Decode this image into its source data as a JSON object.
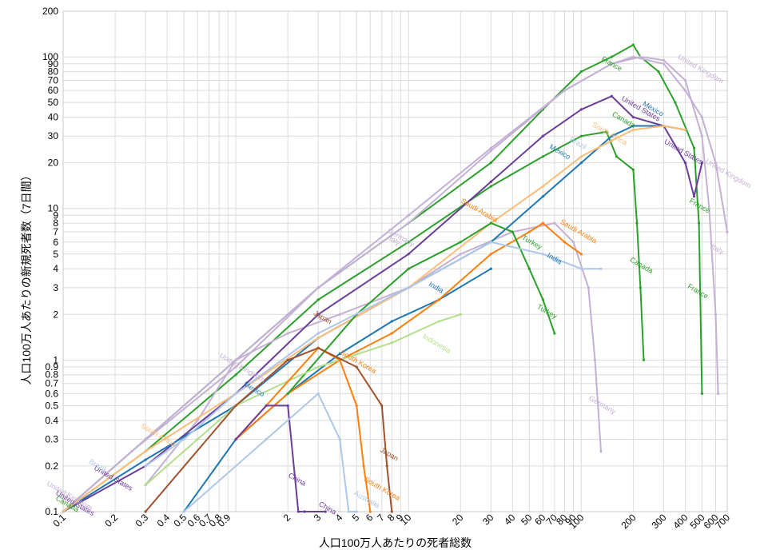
{
  "chart_data": {
    "type": "line",
    "xlabel": "人口100万人あたりの死者総数",
    "ylabel": "人口100万人あたりの新規死者数（7日間）",
    "x_scale": "log",
    "y_scale": "log",
    "xlim": [
      0.1,
      700
    ],
    "ylim": [
      0.1,
      200
    ],
    "x_ticks": [
      0.1,
      0.2,
      0.3,
      0.4,
      0.5,
      0.6,
      0.7,
      0.8,
      0.9,
      2,
      3,
      4,
      5,
      6,
      7,
      8,
      9,
      10,
      20,
      30,
      40,
      50,
      60,
      70,
      80,
      90,
      100,
      200,
      300,
      400,
      500,
      600,
      700
    ],
    "x_tick_labels": [
      "0.1",
      "0.2",
      "0.3",
      "0.4",
      "0.5",
      "0.6",
      "0.7",
      "0.8",
      "0.9",
      "2",
      "3",
      "4",
      "5",
      "6",
      "7",
      "8",
      "9",
      "10",
      "20",
      "30",
      "40",
      "50",
      "60",
      "70",
      "80",
      "90",
      "100",
      "200",
      "300",
      "400",
      "500",
      "600",
      "700"
    ],
    "y_ticks": [
      0.1,
      0.2,
      0.3,
      0.4,
      0.5,
      0.6,
      0.7,
      0.8,
      0.9,
      1,
      2,
      3,
      4,
      5,
      6,
      7,
      8,
      9,
      10,
      20,
      30,
      40,
      50,
      60,
      70,
      80,
      90,
      100,
      200
    ],
    "y_tick_labels": [
      "0.1",
      "0.2",
      "0.3",
      "0.4",
      "0.5",
      "0.6",
      "0.7",
      "0.8",
      "0.9",
      "1",
      "2",
      "3",
      "4",
      "5",
      "6",
      "7",
      "8",
      "9",
      "10",
      "20",
      "30",
      "40",
      "50",
      "60",
      "70",
      "80",
      "90",
      "100",
      "200"
    ],
    "grid": true,
    "series": [
      {
        "name": "France",
        "color": "#2ca02c",
        "points": [
          [
            0.1,
            0.1
          ],
          [
            0.3,
            0.3
          ],
          [
            1,
            1
          ],
          [
            3,
            3
          ],
          [
            10,
            8
          ],
          [
            30,
            20
          ],
          [
            60,
            45
          ],
          [
            100,
            80
          ],
          [
            150,
            100
          ],
          [
            200,
            120
          ],
          [
            220,
            100
          ],
          [
            280,
            80
          ],
          [
            350,
            50
          ],
          [
            450,
            25
          ],
          [
            480,
            8
          ],
          [
            500,
            0.6
          ]
        ]
      },
      {
        "name": "Canada",
        "color": "#2ca02c",
        "points": [
          [
            0.1,
            0.1
          ],
          [
            0.3,
            0.25
          ],
          [
            1,
            0.8
          ],
          [
            3,
            2.5
          ],
          [
            10,
            6
          ],
          [
            30,
            14
          ],
          [
            60,
            22
          ],
          [
            100,
            30
          ],
          [
            140,
            32
          ],
          [
            160,
            22
          ],
          [
            200,
            18
          ],
          [
            210,
            8
          ],
          [
            220,
            3
          ],
          [
            230,
            1
          ]
        ]
      },
      {
        "name": "Italy",
        "color": "#c5b0d5",
        "points": [
          [
            0.1,
            0.1
          ],
          [
            0.3,
            0.3
          ],
          [
            1,
            1
          ],
          [
            3,
            3
          ],
          [
            10,
            9
          ],
          [
            30,
            25
          ],
          [
            80,
            60
          ],
          [
            150,
            90
          ],
          [
            200,
            100
          ],
          [
            300,
            90
          ],
          [
            400,
            60
          ],
          [
            500,
            40
          ],
          [
            600,
            20
          ],
          [
            700,
            7
          ]
        ]
      },
      {
        "name": "United Kingdom",
        "color": "#c5b0d5",
        "points": [
          [
            0.1,
            0.1
          ],
          [
            0.25,
            0.25
          ],
          [
            1,
            0.9
          ],
          [
            3,
            3
          ],
          [
            10,
            8
          ],
          [
            30,
            24
          ],
          [
            80,
            60
          ],
          [
            150,
            90
          ],
          [
            220,
            100
          ],
          [
            300,
            95
          ],
          [
            400,
            70
          ],
          [
            500,
            30
          ],
          [
            550,
            10
          ],
          [
            600,
            2
          ],
          [
            620,
            0.6
          ]
        ]
      },
      {
        "name": "Germany",
        "color": "#c5b0d5",
        "points": [
          [
            0.3,
            0.15
          ],
          [
            0.6,
            0.4
          ],
          [
            1,
            1
          ],
          [
            2,
            1.5
          ],
          [
            4,
            2
          ],
          [
            10,
            3
          ],
          [
            20,
            5
          ],
          [
            40,
            7
          ],
          [
            70,
            8
          ],
          [
            90,
            6
          ],
          [
            110,
            3
          ],
          [
            120,
            1
          ],
          [
            130,
            0.25
          ]
        ]
      },
      {
        "name": "United States",
        "color": "#6a3d9a",
        "points": [
          [
            0.1,
            0.1
          ],
          [
            0.3,
            0.2
          ],
          [
            1,
            0.6
          ],
          [
            3,
            2
          ],
          [
            10,
            5
          ],
          [
            30,
            15
          ],
          [
            60,
            30
          ],
          [
            100,
            45
          ],
          [
            150,
            55
          ],
          [
            200,
            40
          ],
          [
            300,
            35
          ],
          [
            400,
            20
          ],
          [
            450,
            12
          ],
          [
            500,
            20
          ]
        ]
      },
      {
        "name": "Mexico",
        "color": "#1f77b4",
        "points": [
          [
            0.1,
            0.1
          ],
          [
            0.3,
            0.22
          ],
          [
            1,
            0.5
          ],
          [
            3,
            1.4
          ],
          [
            10,
            3
          ],
          [
            30,
            6
          ],
          [
            60,
            12
          ],
          [
            100,
            20
          ],
          [
            150,
            30
          ],
          [
            200,
            35
          ],
          [
            300,
            35
          ],
          [
            400,
            33
          ]
        ]
      },
      {
        "name": "South Africa",
        "color": "#ffbb78",
        "points": [
          [
            0.1,
            0.1
          ],
          [
            0.3,
            0.25
          ],
          [
            1,
            0.6
          ],
          [
            3,
            1.4
          ],
          [
            10,
            3
          ],
          [
            30,
            8
          ],
          [
            60,
            14
          ],
          [
            100,
            22
          ],
          [
            150,
            28
          ],
          [
            200,
            33
          ],
          [
            300,
            35
          ],
          [
            400,
            33
          ]
        ]
      },
      {
        "name": "India",
        "color": "#1f77b4",
        "points": [
          [
            0.5,
            0.1
          ],
          [
            1,
            0.3
          ],
          [
            2,
            0.6
          ],
          [
            4,
            1.1
          ],
          [
            8,
            1.8
          ],
          [
            15,
            2.5
          ],
          [
            30,
            4
          ]
        ]
      },
      {
        "name": "Saudi Arabia",
        "color": "#ff7f0e",
        "points": [
          [
            1,
            0.3
          ],
          [
            2,
            0.6
          ],
          [
            4,
            1
          ],
          [
            8,
            1.5
          ],
          [
            15,
            2.5
          ],
          [
            30,
            5
          ],
          [
            50,
            7
          ],
          [
            60,
            8
          ],
          [
            80,
            6
          ],
          [
            100,
            5
          ]
        ]
      },
      {
        "name": "Turkey",
        "color": "#2ca02c",
        "points": [
          [
            2,
            0.6
          ],
          [
            5,
            2
          ],
          [
            10,
            4
          ],
          [
            20,
            6
          ],
          [
            30,
            8
          ],
          [
            40,
            7
          ],
          [
            50,
            4
          ],
          [
            60,
            2.5
          ],
          [
            70,
            1.5
          ]
        ]
      },
      {
        "name": "Brazil",
        "color": "#aec7e8",
        "points": [
          [
            0.3,
            0.2
          ],
          [
            0.5,
            0.3
          ],
          [
            1,
            0.6
          ],
          [
            3,
            1.5
          ],
          [
            10,
            3
          ],
          [
            30,
            6
          ],
          [
            60,
            5
          ],
          [
            100,
            4
          ],
          [
            130,
            4
          ]
        ]
      },
      {
        "name": "Indonesia",
        "color": "#b2df8a",
        "points": [
          [
            0.3,
            0.15
          ],
          [
            0.6,
            0.3
          ],
          [
            1,
            0.5
          ],
          [
            3,
            0.9
          ],
          [
            8,
            1.3
          ],
          [
            15,
            1.8
          ],
          [
            20,
            2
          ]
        ]
      },
      {
        "name": "South Korea",
        "color": "#ff7f0e",
        "points": [
          [
            1,
            0.3
          ],
          [
            3,
            1.2
          ],
          [
            4,
            1
          ],
          [
            5,
            0.5
          ],
          [
            5.5,
            0.2
          ],
          [
            6,
            0.1
          ]
        ]
      },
      {
        "name": "Japan",
        "color": "#a0522d",
        "points": [
          [
            0.3,
            0.1
          ],
          [
            1,
            0.5
          ],
          [
            2,
            1
          ],
          [
            3,
            1.2
          ],
          [
            5,
            0.9
          ],
          [
            7,
            0.5
          ],
          [
            7.5,
            0.2
          ],
          [
            8,
            0.1
          ]
        ]
      },
      {
        "name": "China",
        "color": "#6a3d9a",
        "points": [
          [
            1,
            0.3
          ],
          [
            1.5,
            0.5
          ],
          [
            2,
            0.5
          ],
          [
            2.3,
            0.1
          ],
          [
            2.5,
            0.1
          ],
          [
            3.3,
            0.1
          ]
        ]
      },
      {
        "name": "Australia",
        "color": "#aec7e8",
        "points": [
          [
            0.5,
            0.1
          ],
          [
            1.5,
            0.3
          ],
          [
            3,
            0.6
          ],
          [
            4,
            0.3
          ],
          [
            4.5,
            0.1
          ],
          [
            5,
            0.1
          ]
        ]
      }
    ],
    "labels": [
      {
        "text": "France",
        "series": "France",
        "at": [
          130,
          95
        ]
      },
      {
        "text": "Canada",
        "series": "Canada",
        "at": [
          150,
          41
        ]
      },
      {
        "text": "Canada",
        "series": "Canada",
        "at": [
          190,
          4.5
        ]
      },
      {
        "text": "France",
        "series": "France",
        "at": [
          420,
          11
        ]
      },
      {
        "text": "France",
        "series": "France",
        "at": [
          410,
          3
        ]
      },
      {
        "text": "United Kingdom",
        "series": "United Kingdom",
        "at": [
          360,
          98
        ]
      },
      {
        "text": "United Kingdom",
        "series": "United Kingdom",
        "at": [
          520,
          20
        ]
      },
      {
        "text": "Italy",
        "series": "Italy",
        "at": [
          560,
          5.5
        ]
      },
      {
        "text": "United States",
        "series": "United States",
        "at": [
          170,
          52
        ]
      },
      {
        "text": "Mexico",
        "series": "Mexico",
        "at": [
          225,
          48
        ]
      },
      {
        "text": "United States",
        "series": "United States",
        "at": [
          300,
          27
        ]
      },
      {
        "text": "Mexico",
        "series": "Mexico",
        "at": [
          65,
          25
        ]
      },
      {
        "text": "South Africa",
        "series": "South Africa",
        "at": [
          115,
          35
        ]
      },
      {
        "text": "Brazil",
        "series": "Brazil",
        "at": [
          85,
          28
        ]
      },
      {
        "text": "Germany",
        "series": "Germany",
        "at": [
          110,
          0.55
        ]
      },
      {
        "text": "Germany",
        "series": "Germany",
        "at": [
          7.5,
          7
        ]
      },
      {
        "text": "Italy",
        "series": "Italy",
        "at": [
          7.5,
          6.3
        ]
      },
      {
        "text": "Saudi Arabia",
        "series": "Saudi Arabia",
        "at": [
          20,
          11
        ]
      },
      {
        "text": "Saudi Arabia",
        "series": "Saudi Arabia",
        "at": [
          75,
          8
        ]
      },
      {
        "text": "Turkey",
        "series": "Turkey",
        "at": [
          45,
          6.3
        ]
      },
      {
        "text": "Turkey",
        "series": "Turkey",
        "at": [
          55,
          2.2
        ]
      },
      {
        "text": "India",
        "series": "India",
        "at": [
          13,
          3.1
        ]
      },
      {
        "text": "India",
        "series": "India",
        "at": [
          63,
          4.8
        ]
      },
      {
        "text": "Indonesia",
        "series": "Indonesia",
        "at": [
          12,
          1.4
        ]
      },
      {
        "text": "Japan",
        "series": "Japan",
        "at": [
          2.8,
          2
        ]
      },
      {
        "text": "Japan",
        "series": "Japan",
        "at": [
          6.8,
          0.25
        ]
      },
      {
        "text": "South Korea",
        "series": "South Korea",
        "at": [
          4,
          1.1
        ]
      },
      {
        "text": "South Korea",
        "series": "South Korea",
        "at": [
          5.5,
          0.16
        ]
      },
      {
        "text": "China",
        "series": "China",
        "at": [
          2,
          0.17
        ]
      },
      {
        "text": "China",
        "series": "China",
        "at": [
          3,
          0.11
        ]
      },
      {
        "text": "Australia",
        "series": "Australia",
        "at": [
          4.8,
          0.13
        ]
      },
      {
        "text": "United Kingdom",
        "series": "United Kingdom",
        "at": [
          0.8,
          1.05
        ]
      },
      {
        "text": "Mexico",
        "series": "Mexico",
        "at": [
          1.1,
          0.68
        ]
      },
      {
        "text": "South Africa",
        "series": "South Africa",
        "at": [
          0.28,
          0.36
        ]
      },
      {
        "text": "United States",
        "series": "United States",
        "at": [
          0.15,
          0.19
        ]
      },
      {
        "text": "Brazil",
        "series": "Brazil",
        "at": [
          0.14,
          0.21
        ]
      },
      {
        "text": "United States",
        "series": "United States",
        "at": [
          0.09,
          0.13
        ]
      },
      {
        "text": "United Kingdom",
        "series": "United Kingdom",
        "at": [
          0.08,
          0.15
        ]
      },
      {
        "text": "Canada",
        "series": "Canada",
        "at": [
          0.09,
          0.12
        ]
      }
    ]
  }
}
